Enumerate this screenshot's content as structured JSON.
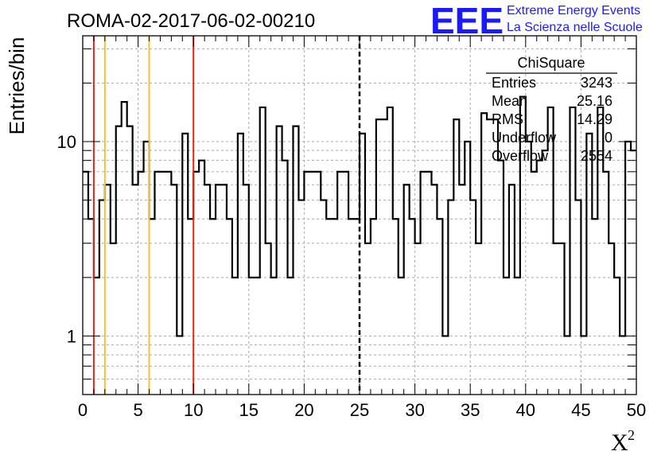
{
  "chart_data": {
    "type": "histogram",
    "title": "ROMA-02-2017-06-02-00210",
    "xlabel": "X",
    "xlabel_superscript": "2",
    "ylabel": "Entries/bin",
    "xlim": [
      0,
      50
    ],
    "ylim": [
      0.5,
      35
    ],
    "yscale": "log",
    "grid": true,
    "bin_width": 0.5,
    "x_ticks": [
      "0",
      "5",
      "10",
      "15",
      "20",
      "25",
      "30",
      "35",
      "40",
      "45",
      "50"
    ],
    "y_ticks": [
      "1",
      "10"
    ],
    "bin_values": [
      7,
      4,
      2,
      5,
      6,
      3,
      12,
      16,
      12,
      6,
      7,
      10,
      4,
      7,
      7,
      7,
      6,
      1,
      11,
      4,
      7,
      8,
      6,
      4,
      6,
      6,
      4,
      2,
      11,
      6,
      2,
      2,
      15,
      3,
      2,
      12,
      8,
      2,
      12,
      5,
      7,
      7,
      7,
      5,
      4,
      4,
      7,
      7,
      4,
      4,
      11,
      3,
      4,
      13,
      13,
      15,
      4,
      2,
      6,
      4,
      3,
      7,
      7,
      6,
      4,
      1,
      5,
      13,
      6,
      10,
      5,
      3,
      14,
      13,
      13,
      8,
      2,
      6,
      2,
      17,
      10,
      7,
      8,
      9,
      15,
      3,
      3,
      1,
      15,
      5,
      1,
      11,
      4,
      15,
      7,
      3,
      2,
      1,
      10,
      9
    ],
    "vertical_lines": [
      {
        "x": 1,
        "color": "#e8241a",
        "style": "solid"
      },
      {
        "x": 2,
        "color": "#f5c230",
        "style": "solid"
      },
      {
        "x": 6,
        "color": "#f5c230",
        "style": "solid"
      },
      {
        "x": 10,
        "color": "#e8241a",
        "style": "solid"
      },
      {
        "x": 25,
        "color": "#000000",
        "style": "dashed"
      }
    ],
    "stats": {
      "name": "ChiSquare",
      "rows": [
        {
          "label": "Entries",
          "value": "3243"
        },
        {
          "label": "Mean",
          "value": "25.16"
        },
        {
          "label": "RMS",
          "value": "14.29"
        },
        {
          "label": "Underflow",
          "value": "0"
        },
        {
          "label": "Overflow",
          "value": "2554"
        }
      ]
    }
  },
  "logo": {
    "big": "EEE",
    "line1": "Extreme Energy Events",
    "line2": "La Scienza nelle Scuole",
    "color": "#1a1aff"
  }
}
